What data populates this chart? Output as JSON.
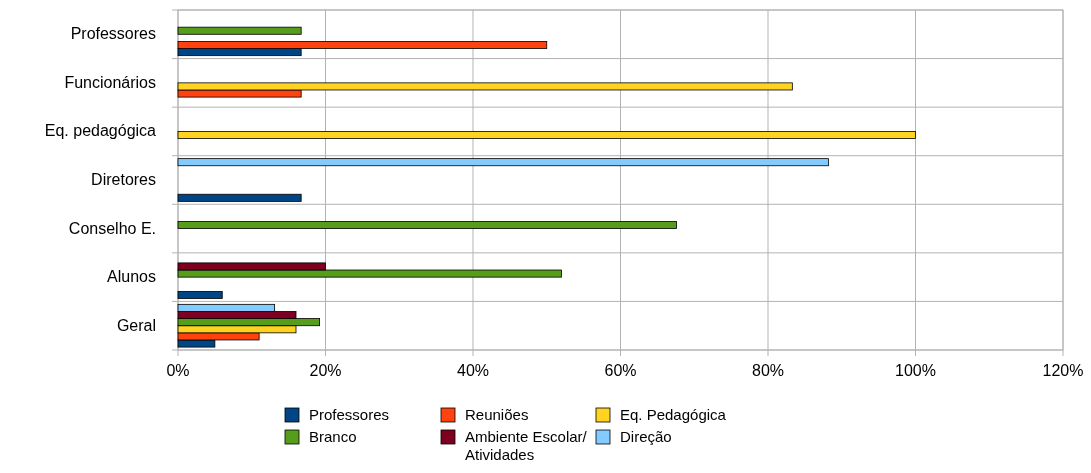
{
  "chart_data": {
    "type": "bar",
    "orientation": "horizontal",
    "categories": [
      "Professores",
      "Funcionários",
      "Eq. pedagógica",
      "Diretores",
      "Conselho E.",
      "Alunos",
      "Geral"
    ],
    "series": [
      {
        "name": "Professores",
        "color": "#004586",
        "values": [
          16.7,
          null,
          null,
          16.7,
          null,
          6,
          5
        ]
      },
      {
        "name": "Reuniões",
        "color": "#ff420e",
        "values": [
          50,
          16.7,
          null,
          null,
          null,
          null,
          11
        ]
      },
      {
        "name": "Eq. Pedagógica",
        "color": "#ffd320",
        "values": [
          null,
          83.3,
          100,
          null,
          null,
          null,
          16
        ]
      },
      {
        "name": "Branco",
        "color": "#579d1c",
        "values": [
          16.7,
          null,
          null,
          null,
          67.6,
          52,
          19.2
        ]
      },
      {
        "name": "Ambiente Escolar/ Atividades",
        "color": "#7e0021",
        "values": [
          null,
          null,
          null,
          null,
          null,
          20,
          16
        ]
      },
      {
        "name": "Direção",
        "color": "#83caff",
        "values": [
          null,
          null,
          null,
          88.2,
          null,
          null,
          13.1
        ]
      }
    ],
    "xlim": [
      0,
      120
    ],
    "xticks": [
      {
        "value": 0,
        "label": "0%"
      },
      {
        "value": 20,
        "label": "20%"
      },
      {
        "value": 40,
        "label": "40%"
      },
      {
        "value": 60,
        "label": "60%"
      },
      {
        "value": 80,
        "label": "80%"
      },
      {
        "value": 100,
        "label": "100%"
      },
      {
        "value": 120,
        "label": "120%"
      }
    ],
    "grid": true,
    "legend": "bottom"
  }
}
